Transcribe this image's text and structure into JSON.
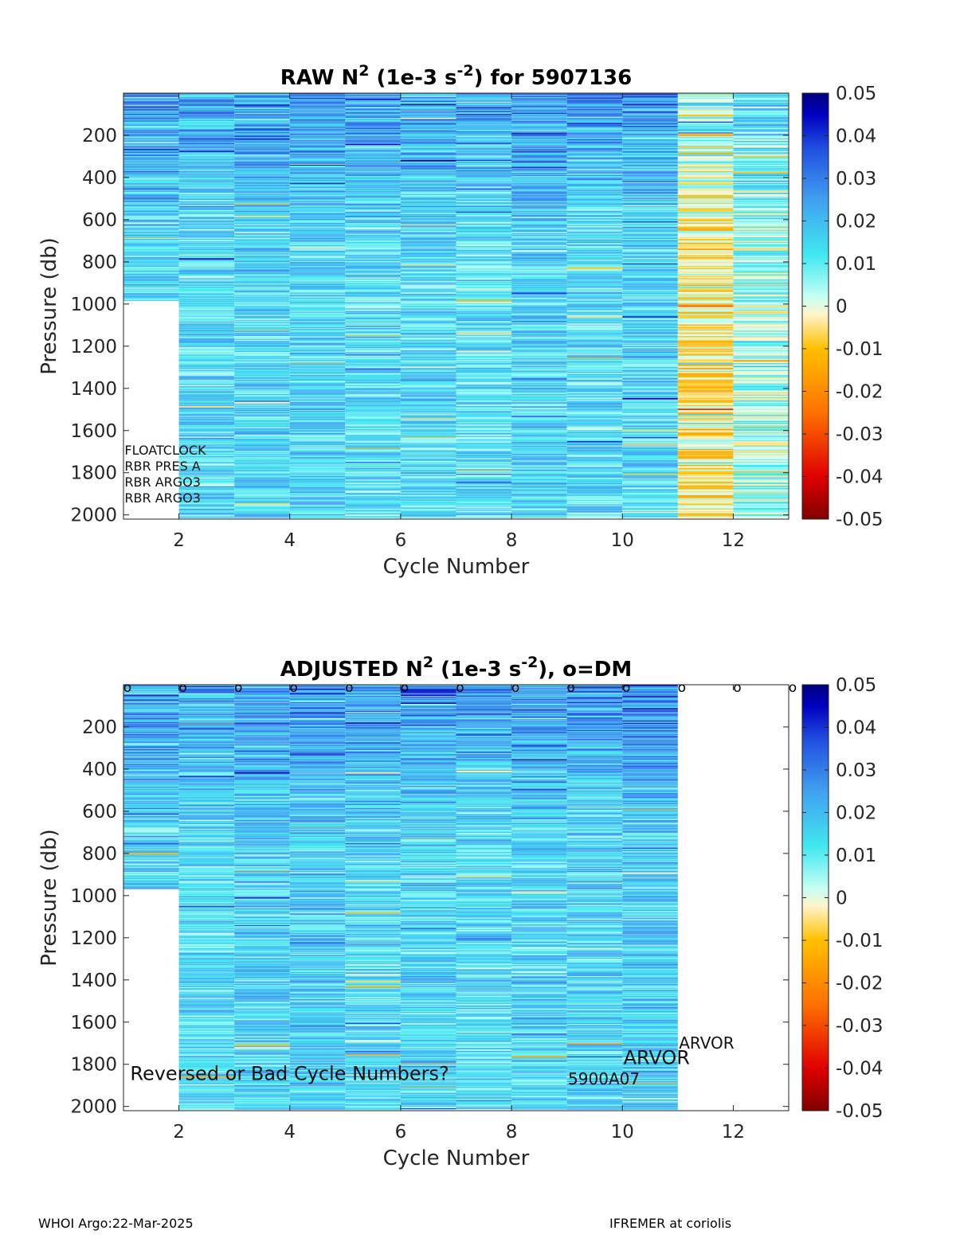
{
  "figure": {
    "footer_left": "WHOI Argo:22-Mar-2025",
    "footer_right": "IFREMER at coriolis"
  },
  "colorbar": {
    "ticks": [
      "0.05",
      "0.04",
      "0.03",
      "0.02",
      "0.01",
      "0",
      "-0.01",
      "-0.02",
      "-0.03",
      "-0.04",
      "-0.05"
    ],
    "colors": [
      "#800000",
      "#e00000",
      "#ff7000",
      "#ffc000",
      "#fff4c8",
      "#c8fff4",
      "#40e8f0",
      "#40a0f0",
      "#2050e0",
      "#0000c0",
      "#000080"
    ]
  },
  "chart_data": [
    {
      "type": "heatmap",
      "title_main": "RAW N",
      "title_sup1": "2",
      "title_mid": " (1e-3 s",
      "title_sup2": "-2",
      "title_end": ") for 5907136",
      "xlabel": "Cycle Number",
      "ylabel": "Pressure (db)",
      "xlim": [
        1,
        13
      ],
      "ylim": [
        2020,
        0
      ],
      "xticks": [
        "2",
        "4",
        "6",
        "8",
        "10",
        "12"
      ],
      "yticks": [
        "200",
        "400",
        "600",
        "800",
        "1000",
        "1200",
        "1400",
        "1600",
        "1800",
        "2000"
      ],
      "clim": [
        -0.05,
        0.05
      ],
      "cycles": [
        1,
        2,
        3,
        4,
        5,
        6,
        7,
        8,
        9,
        10,
        11,
        12
      ],
      "max_pressure": [
        985,
        2015,
        2015,
        2015,
        2015,
        2015,
        2015,
        2015,
        2015,
        2015,
        2015,
        2015
      ],
      "mean_value": [
        0.015,
        0.014,
        0.016,
        0.016,
        0.014,
        0.015,
        0.013,
        0.016,
        0.014,
        0.015,
        -0.005,
        0.004
      ],
      "annotations": [
        {
          "text": "FLOATCLOCK",
          "x": 1.02,
          "y": 1715
        },
        {
          "text": "RBR PRES A",
          "x": 1.02,
          "y": 1790
        },
        {
          "text": "RBR ARGO3",
          "x": 1.02,
          "y": 1865
        },
        {
          "text": "RBR ARGO3",
          "x": 1.02,
          "y": 1940
        }
      ]
    },
    {
      "type": "heatmap",
      "title_main": "ADJUSTED N",
      "title_sup1": "2",
      "title_mid": " (1e-3 s",
      "title_sup2": "-2",
      "title_end": "), o=DM",
      "xlabel": "Cycle Number",
      "ylabel": "Pressure (db)",
      "xlim": [
        1,
        13
      ],
      "ylim": [
        2020,
        0
      ],
      "xticks": [
        "2",
        "4",
        "6",
        "8",
        "10",
        "12"
      ],
      "yticks": [
        "200",
        "400",
        "600",
        "800",
        "1000",
        "1200",
        "1400",
        "1600",
        "1800",
        "2000"
      ],
      "clim": [
        -0.05,
        0.05
      ],
      "cycles": [
        1,
        2,
        3,
        4,
        5,
        6,
        7,
        8,
        9,
        10
      ],
      "max_pressure": [
        970,
        2015,
        2015,
        2015,
        2015,
        2015,
        2015,
        2015,
        2015,
        2015
      ],
      "mean_value": [
        0.015,
        0.014,
        0.016,
        0.017,
        0.015,
        0.016,
        0.014,
        0.016,
        0.015,
        0.017
      ],
      "dm_marker": "o",
      "dm_cycles": [
        1,
        2,
        3,
        4,
        5,
        6,
        7,
        8,
        9,
        10,
        11,
        12,
        13
      ],
      "annotations": [
        {
          "text": "Reversed or Bad Cycle Numbers?",
          "x": 1.12,
          "y": 1875,
          "size": "large"
        },
        {
          "text": "ARVOR",
          "x": 11.02,
          "y": 1725,
          "size": "medium"
        },
        {
          "text": "ARVOR",
          "x": 10.02,
          "y": 1800,
          "size": "large"
        },
        {
          "text": "5900A07",
          "x": 9.02,
          "y": 1895,
          "size": "medium"
        }
      ]
    }
  ]
}
